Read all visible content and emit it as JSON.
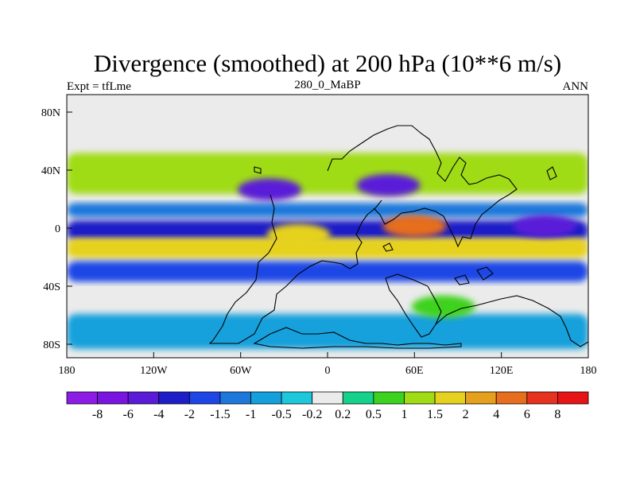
{
  "chart_data": {
    "type": "heatmap",
    "title": "Divergence (smoothed) at 200 hPa (10**6 m/s)",
    "left_label": "Expt = tfLme",
    "center_label": "280_0_MaBP",
    "right_label": "ANN",
    "x_ticks": [
      "180",
      "120W",
      "60W",
      "0",
      "60E",
      "120E",
      "180"
    ],
    "y_ticks": [
      "80N",
      "40N",
      "0",
      "40S",
      "80S"
    ],
    "xlim": [
      -180,
      180
    ],
    "ylim": [
      -90,
      90
    ],
    "colorbar_labels": [
      "-8",
      "-6",
      "-4",
      "-2",
      "-1.5",
      "-1",
      "-0.5",
      "-0.2",
      "0.2",
      "0.5",
      "1",
      "1.5",
      "2",
      "4",
      "6",
      "8"
    ],
    "colorbar_colors": [
      "#8c1ce6",
      "#7a14e0",
      "#5a1ad8",
      "#1e1ec8",
      "#1e46e6",
      "#1e78dc",
      "#14a0dc",
      "#1ec8dc",
      "#ebebeb",
      "#14d28c",
      "#3cd21e",
      "#a0dc14",
      "#e6d21e",
      "#e6a01e",
      "#e66e1e",
      "#e6321e",
      "#e61414"
    ],
    "bands": [
      {
        "lat": [
          22,
          50
        ],
        "value": 1.5
      },
      {
        "lat": [
          6,
          16
        ],
        "value": -1
      },
      {
        "lat": [
          -10,
          4
        ],
        "value": -2
      },
      {
        "lat": [
          -22,
          -8
        ],
        "value": 2
      },
      {
        "lat": [
          -38,
          -24
        ],
        "value": -1.5
      },
      {
        "lat": [
          -84,
          -60
        ],
        "value": -0.5
      }
    ],
    "regions": [
      {
        "name": "subtropical-convergence-40N-60W",
        "lon": -40,
        "lat": 25,
        "value": -4
      },
      {
        "name": "convergence-40N-40E",
        "lon": 42,
        "lat": 28,
        "value": -4
      },
      {
        "name": "divergence-indian-ocean",
        "lon": 60,
        "lat": 0,
        "value": 6
      },
      {
        "name": "divergence-atlantic-tropics",
        "lon": -20,
        "lat": -6,
        "value": 2
      },
      {
        "name": "convergence-pacific-equator",
        "lon": 150,
        "lat": 0,
        "value": -4
      },
      {
        "name": "divergence-southern-ocean",
        "lon": 80,
        "lat": -55,
        "value": 1
      }
    ]
  }
}
